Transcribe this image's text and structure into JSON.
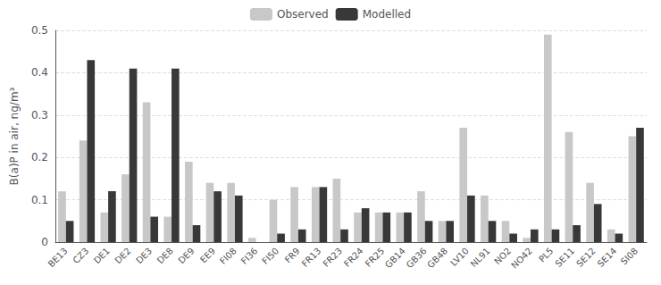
{
  "chart_data": {
    "type": "bar",
    "categories": [
      "BE13",
      "CZ3",
      "DE1",
      "DE2",
      "DE3",
      "DE8",
      "DE9",
      "EE9",
      "FI08",
      "FI36",
      "FI50",
      "FR9",
      "FR13",
      "FR23",
      "FR24",
      "FR25",
      "GB14",
      "GB36",
      "GB48",
      "LV10",
      "NL91",
      "NO2",
      "NO42",
      "PL5",
      "SE11",
      "SE12",
      "SE14",
      "SI08"
    ],
    "series": [
      {
        "name": "Observed",
        "color": "#c8c8c8",
        "values": [
          0.12,
          0.24,
          0.07,
          0.16,
          0.33,
          0.06,
          0.19,
          0.14,
          0.14,
          0.01,
          0.1,
          0.13,
          0.13,
          0.15,
          0.07,
          0.07,
          0.07,
          0.12,
          0.05,
          0.27,
          0.11,
          0.05,
          0.01,
          0.49,
          0.26,
          0.14,
          0.03,
          0.25
        ]
      },
      {
        "name": "Modelled",
        "color": "#383838",
        "values": [
          0.05,
          0.43,
          0.12,
          0.41,
          0.06,
          0.41,
          0.04,
          0.12,
          0.11,
          0.0,
          0.02,
          0.03,
          0.13,
          0.03,
          0.08,
          0.07,
          0.07,
          0.05,
          0.05,
          0.11,
          0.05,
          0.02,
          0.03,
          0.03,
          0.04,
          0.09,
          0.02,
          0.27
        ]
      }
    ],
    "ylabel": "B(a)P in air, ng/m³",
    "ylim": [
      0,
      0.5
    ],
    "yticks": [
      0,
      0.1,
      0.2,
      0.3,
      0.4,
      0.5
    ],
    "grid": true,
    "legend": "top"
  }
}
